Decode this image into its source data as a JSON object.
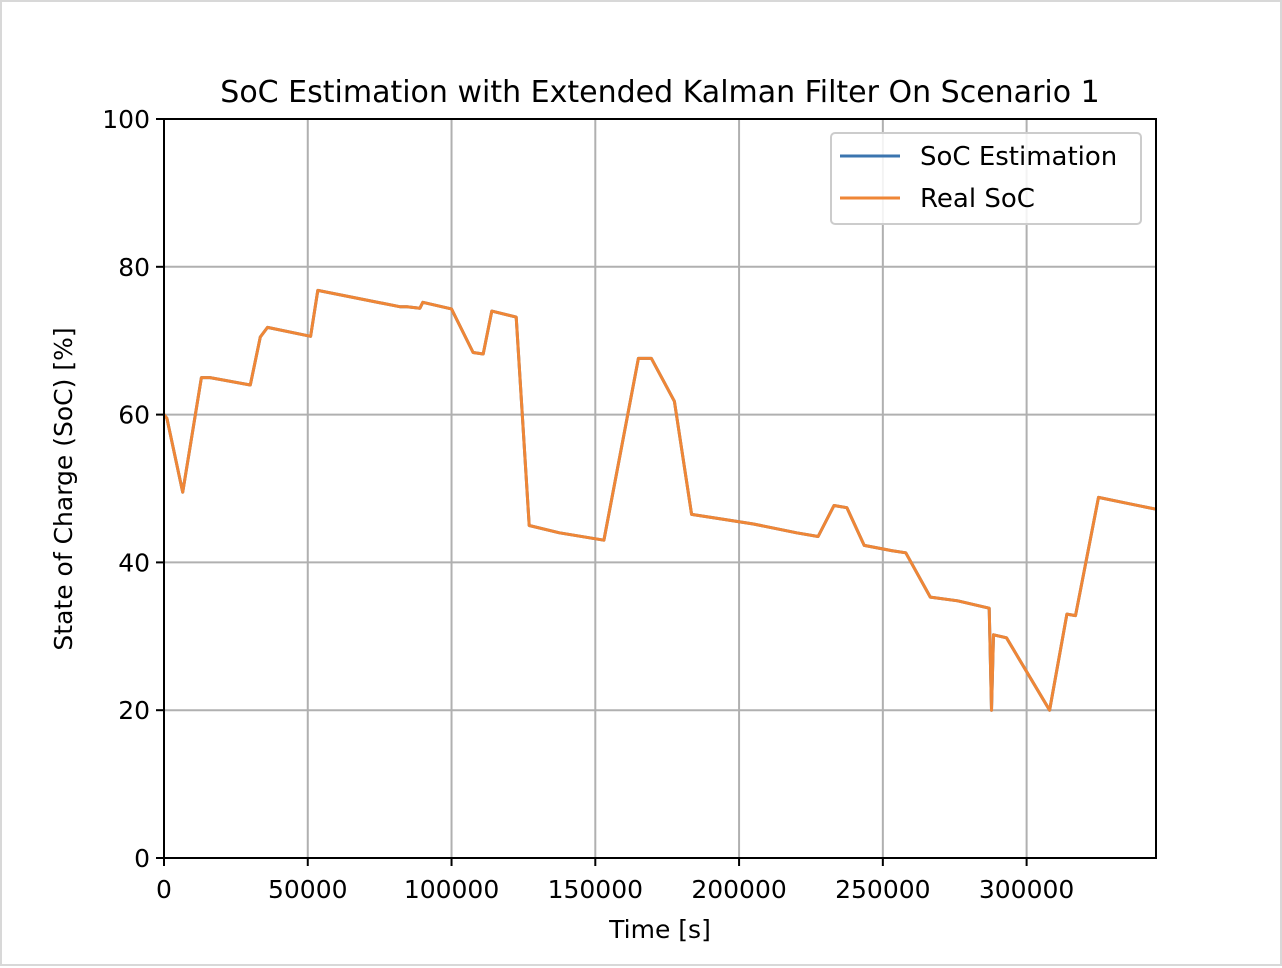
{
  "chart_data": {
    "type": "line",
    "title": "SoC Estimation with Extended Kalman Filter On Scenario 1",
    "xlabel": "Time [s]",
    "ylabel": "State of Charge (SoC) [%]",
    "xlim": [
      0,
      345000
    ],
    "ylim": [
      0,
      100
    ],
    "xticks": [
      0,
      50000,
      100000,
      150000,
      200000,
      250000,
      300000
    ],
    "xtick_labels": [
      "0",
      "50000",
      "100000",
      "150000",
      "200000",
      "250000",
      "300000"
    ],
    "yticks": [
      0,
      20,
      40,
      60,
      80,
      100
    ],
    "ytick_labels": [
      "0",
      "20",
      "40",
      "60",
      "80",
      "100"
    ],
    "grid": true,
    "legend_position": "top-right",
    "series": [
      {
        "name": "SoC Estimation",
        "color": "#3b75af",
        "x": [
          0,
          1000,
          6500,
          13000,
          16000,
          30000,
          33500,
          36000,
          51000,
          53500,
          82000,
          84500,
          89000,
          90000,
          100000,
          107500,
          111000,
          114000,
          122500,
          127000,
          137500,
          153000,
          165000,
          169500,
          177500,
          183500,
          195000,
          205000,
          220000,
          227500,
          233000,
          237500,
          243500,
          253000,
          258000,
          266500,
          276000,
          287000,
          287800,
          288500,
          293000,
          308000,
          314000,
          317000,
          325000,
          335000,
          345000
        ],
        "y": [
          60,
          59.5,
          49.5,
          65,
          65,
          64,
          70.5,
          71.8,
          70.6,
          76.8,
          74.6,
          74.6,
          74.4,
          75.2,
          74.3,
          68.4,
          68.2,
          74.0,
          73.2,
          45.0,
          44.0,
          43.0,
          67.6,
          67.6,
          61.8,
          46.5,
          45.8,
          45.2,
          44.0,
          43.5,
          47.7,
          47.4,
          42.3,
          41.6,
          41.3,
          35.3,
          34.8,
          33.8,
          20.0,
          30.2,
          29.8,
          20.0,
          33.0,
          32.8,
          48.8,
          48.0,
          47.2
        ]
      },
      {
        "name": "Real SoC",
        "color": "#ef8636",
        "x": [
          0,
          1000,
          6500,
          13000,
          16000,
          30000,
          33500,
          36000,
          51000,
          53500,
          82000,
          84500,
          89000,
          90000,
          100000,
          107500,
          111000,
          114000,
          122500,
          127000,
          137500,
          153000,
          165000,
          169500,
          177500,
          183500,
          195000,
          205000,
          220000,
          227500,
          233000,
          237500,
          243500,
          253000,
          258000,
          266500,
          276000,
          287000,
          287800,
          288500,
          293000,
          308000,
          314000,
          317000,
          325000,
          335000,
          345000
        ],
        "y": [
          60,
          59.5,
          49.5,
          65,
          65,
          64,
          70.5,
          71.8,
          70.6,
          76.8,
          74.6,
          74.6,
          74.4,
          75.2,
          74.3,
          68.4,
          68.2,
          74.0,
          73.2,
          45.0,
          44.0,
          43.0,
          67.6,
          67.6,
          61.8,
          46.5,
          45.8,
          45.2,
          44.0,
          43.5,
          47.7,
          47.4,
          42.3,
          41.6,
          41.3,
          35.3,
          34.8,
          33.8,
          20.0,
          30.2,
          29.8,
          20.0,
          33.0,
          32.8,
          48.8,
          48.0,
          47.2
        ]
      }
    ]
  }
}
